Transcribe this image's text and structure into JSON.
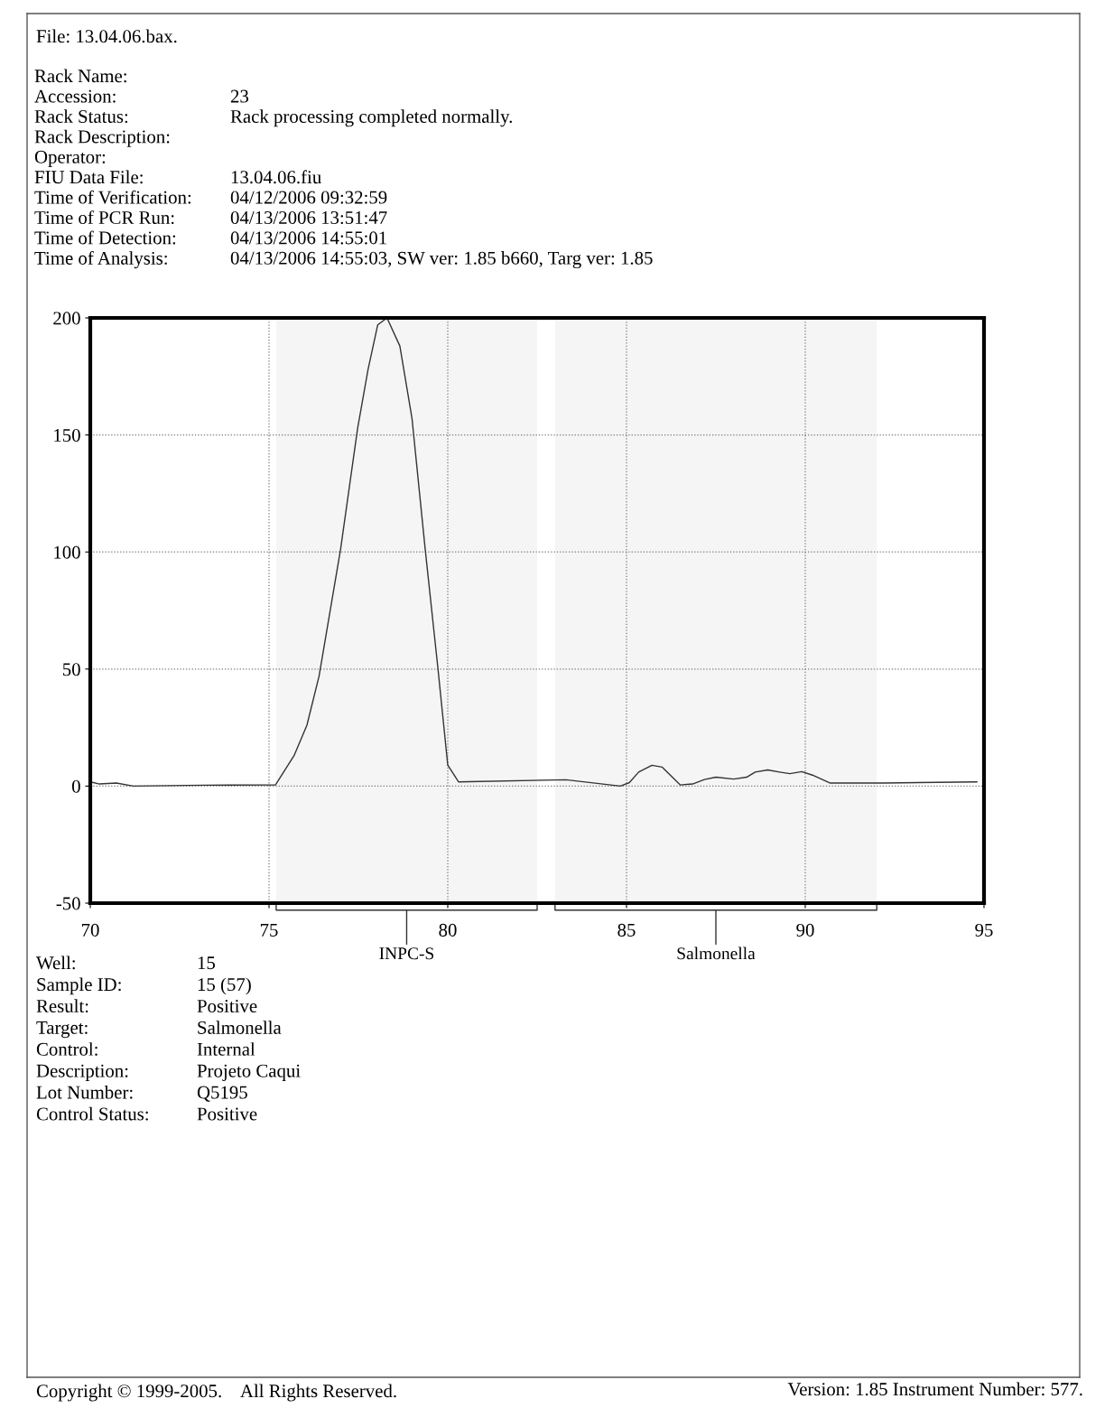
{
  "chart_data": {
    "type": "line",
    "x": [
      70,
      70.26,
      70.73,
      71.2,
      73.2,
      75.18,
      75.7,
      76.06,
      76.4,
      77.0,
      77.48,
      77.77,
      78.04,
      78.3,
      78.66,
      79.0,
      79.37,
      79.72,
      80.0,
      80.3,
      83.3,
      84.83,
      85.08,
      85.34,
      85.71,
      86.0,
      86.5,
      86.85,
      87.18,
      87.5,
      88.0,
      88.36,
      88.6,
      88.95,
      89.28,
      89.57,
      89.9,
      90.2,
      90.7,
      92.2,
      94.8
    ],
    "series": [
      {
        "color": "#333333",
        "values": [
          1.8,
          0.9,
          1.3,
          0,
          0.4,
          0.5,
          13,
          26,
          47,
          101,
          153,
          178,
          197,
          200,
          188,
          157,
          101,
          51,
          9,
          1.8,
          2.7,
          0,
          1.5,
          6,
          8.9,
          8.1,
          0.5,
          0.9,
          2.8,
          3.8,
          3.0,
          3.8,
          6,
          6.9,
          6,
          5.3,
          6.2,
          4.7,
          1.3,
          1.3,
          1.8
        ]
      }
    ],
    "xlim": [
      70,
      95
    ],
    "xticks": [
      70,
      75,
      80,
      85,
      90,
      95
    ],
    "ylim": [
      -50,
      200
    ],
    "yticks": [
      -50,
      0,
      50,
      100,
      150,
      200
    ],
    "grid": true,
    "line_style": "solid",
    "marker": "none",
    "bands": [
      {
        "axis": "x",
        "from": 75.2,
        "to": 82.5,
        "label": "INPC-S",
        "color": "#f5f5f5"
      },
      {
        "axis": "x",
        "from": 83.0,
        "to": 92.0,
        "label": "Salmonella",
        "color": "#f5f5f5"
      }
    ],
    "annotations": [
      "File: 13.04.06.bax.",
      "Rack Name:\t",
      "Accession:\t23",
      "Rack Status:\tRack processing completed normally.",
      "Rack Description:\t",
      "Operator:\t",
      "FIU Data File:\t13.04.06.fiu",
      "Time of Verification:\t04/12/2006 09:32:59",
      "Time of PCR Run:\t04/13/2006 13:51:47",
      "Time of Detection:\t04/13/2006 14:55:01",
      "Time of Analysis:\t04/13/2006 14:55:03, SW ver: 1.85 b660, Targ ver: 1.85",
      "Well:\t15",
      "Sample ID:\t15 (57)",
      "Result:\tPositive",
      "Target:\tSalmonella",
      "Control:\tInternal",
      "Description:\tProjeto Caqui",
      "Lot Number:\tQ5195",
      "Control Status:\tPositive",
      "Copyright © 1999-2005.    All Rights Reserved.",
      "Version: 1.85 Instrument Number: 577."
    ]
  }
}
